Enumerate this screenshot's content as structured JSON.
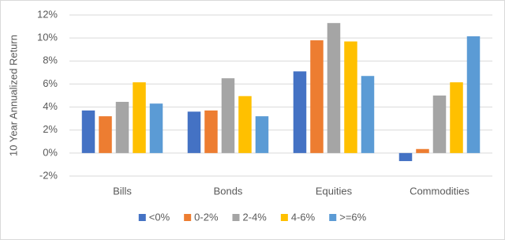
{
  "chart_data": {
    "type": "bar",
    "y_label": "10 Year Annualized Return",
    "categories": [
      "Bills",
      "Bonds",
      "Equities",
      "Commodities"
    ],
    "series": [
      {
        "name": "<0%",
        "color": "#4472c4",
        "values": [
          3.7,
          3.6,
          7.1,
          -0.7
        ]
      },
      {
        "name": "0-2%",
        "color": "#ed7d31",
        "values": [
          3.2,
          3.7,
          9.8,
          0.35
        ]
      },
      {
        "name": "2-4%",
        "color": "#a5a5a5",
        "values": [
          4.45,
          6.5,
          11.3,
          5.0
        ]
      },
      {
        "name": "4-6%",
        "color": "#ffc000",
        "values": [
          6.15,
          4.95,
          9.7,
          6.15
        ]
      },
      {
        "name": ">=6%",
        "color": "#5b9bd5",
        "values": [
          4.3,
          3.2,
          6.7,
          10.15
        ]
      }
    ],
    "ylim": [
      -2,
      12
    ],
    "yticks": [
      {
        "value": -2,
        "label": "-2%"
      },
      {
        "value": 0,
        "label": "0%"
      },
      {
        "value": 2,
        "label": "2%"
      },
      {
        "value": 4,
        "label": "4%"
      },
      {
        "value": 6,
        "label": "6%"
      },
      {
        "value": 8,
        "label": "8%"
      },
      {
        "value": 10,
        "label": "10%"
      },
      {
        "value": 12,
        "label": "12%"
      }
    ],
    "grid": true,
    "legend": "bottom"
  }
}
